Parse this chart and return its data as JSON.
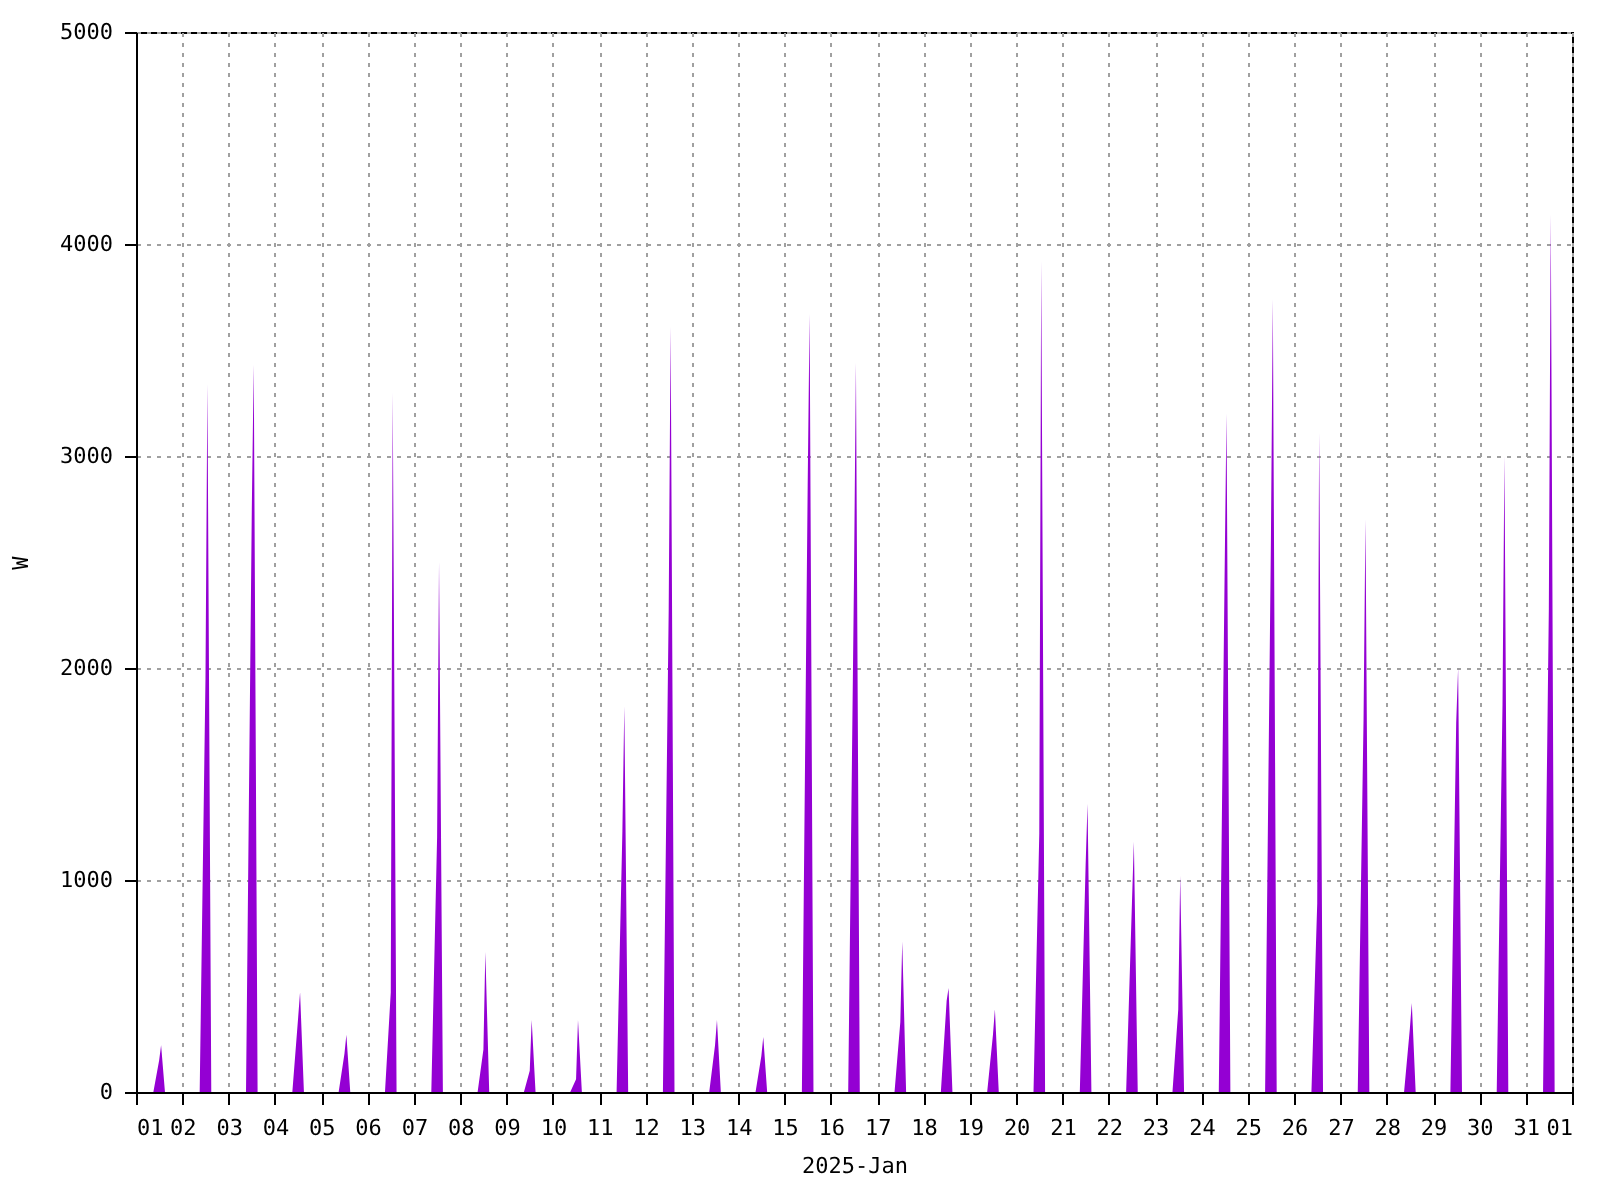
{
  "chart_data": {
    "type": "area",
    "xlabel": "2025-Jan",
    "ylabel": "W",
    "color": "#9400d3",
    "xlim": [
      "2025-01-01",
      "2025-02-01"
    ],
    "ylim": [
      0,
      5000
    ],
    "yticks": [
      0,
      1000,
      2000,
      3000,
      4000,
      5000
    ],
    "grid": true,
    "xticks": [
      {
        "value": "2025-01-01",
        "label": "01"
      },
      {
        "value": "2025-01-02",
        "label": "02"
      },
      {
        "value": "2025-01-03",
        "label": "03"
      },
      {
        "value": "2025-01-04",
        "label": "04"
      },
      {
        "value": "2025-01-05",
        "label": "05"
      },
      {
        "value": "2025-01-06",
        "label": "06"
      },
      {
        "value": "2025-01-07",
        "label": "07"
      },
      {
        "value": "2025-01-08",
        "label": "08"
      },
      {
        "value": "2025-01-09",
        "label": "09"
      },
      {
        "value": "2025-01-10",
        "label": "10"
      },
      {
        "value": "2025-01-11",
        "label": "11"
      },
      {
        "value": "2025-01-12",
        "label": "12"
      },
      {
        "value": "2025-01-13",
        "label": "13"
      },
      {
        "value": "2025-01-14",
        "label": "14"
      },
      {
        "value": "2025-01-15",
        "label": "15"
      },
      {
        "value": "2025-01-16",
        "label": "16"
      },
      {
        "value": "2025-01-17",
        "label": "17"
      },
      {
        "value": "2025-01-18",
        "label": "18"
      },
      {
        "value": "2025-01-19",
        "label": "19"
      },
      {
        "value": "2025-01-20",
        "label": "20"
      },
      {
        "value": "2025-01-21",
        "label": "21"
      },
      {
        "value": "2025-01-22",
        "label": "22"
      },
      {
        "value": "2025-01-23",
        "label": "23"
      },
      {
        "value": "2025-01-24",
        "label": "24"
      },
      {
        "value": "2025-01-25",
        "label": "25"
      },
      {
        "value": "2025-01-26",
        "label": "26"
      },
      {
        "value": "2025-01-27",
        "label": "27"
      },
      {
        "value": "2025-01-28",
        "label": "28"
      },
      {
        "value": "2025-01-29",
        "label": "29"
      },
      {
        "value": "2025-01-30",
        "label": "30"
      },
      {
        "value": "2025-01-31",
        "label": "31"
      },
      {
        "value": "2025-02-01",
        "label": "01"
      }
    ],
    "x": [
      "2025-01-01T09:00",
      "2025-01-01T12:00",
      "2025-01-01T13:00",
      "2025-01-01T15:00",
      "2025-01-02T09:00",
      "2025-01-02T12:00",
      "2025-01-02T13:00",
      "2025-01-02T15:00",
      "2025-01-03T09:00",
      "2025-01-03T12:00",
      "2025-01-03T13:00",
      "2025-01-03T15:00",
      "2025-01-04T09:00",
      "2025-01-04T12:00",
      "2025-01-04T13:00",
      "2025-01-04T15:00",
      "2025-01-05T09:00",
      "2025-01-05T12:00",
      "2025-01-05T13:00",
      "2025-01-05T15:00",
      "2025-01-06T09:00",
      "2025-01-06T12:00",
      "2025-01-06T13:00",
      "2025-01-06T15:00",
      "2025-01-07T09:00",
      "2025-01-07T12:00",
      "2025-01-07T13:00",
      "2025-01-07T15:00",
      "2025-01-08T09:00",
      "2025-01-08T12:00",
      "2025-01-08T13:00",
      "2025-01-08T15:00",
      "2025-01-09T09:00",
      "2025-01-09T12:00",
      "2025-01-09T13:00",
      "2025-01-09T15:00",
      "2025-01-10T09:00",
      "2025-01-10T12:00",
      "2025-01-10T13:00",
      "2025-01-10T15:00",
      "2025-01-11T09:00",
      "2025-01-11T12:00",
      "2025-01-11T13:00",
      "2025-01-11T15:00",
      "2025-01-12T09:00",
      "2025-01-12T12:00",
      "2025-01-12T13:00",
      "2025-01-12T15:00",
      "2025-01-13T09:00",
      "2025-01-13T12:00",
      "2025-01-13T13:00",
      "2025-01-13T15:00",
      "2025-01-14T09:00",
      "2025-01-14T12:00",
      "2025-01-14T13:00",
      "2025-01-14T15:00",
      "2025-01-15T09:00",
      "2025-01-15T12:00",
      "2025-01-15T13:00",
      "2025-01-15T15:00",
      "2025-01-16T09:00",
      "2025-01-16T12:00",
      "2025-01-16T13:00",
      "2025-01-16T15:00",
      "2025-01-17T09:00",
      "2025-01-17T12:00",
      "2025-01-17T13:00",
      "2025-01-17T15:00",
      "2025-01-18T09:00",
      "2025-01-18T12:00",
      "2025-01-18T13:00",
      "2025-01-18T15:00",
      "2025-01-19T09:00",
      "2025-01-19T12:00",
      "2025-01-19T13:00",
      "2025-01-19T15:00",
      "2025-01-20T09:00",
      "2025-01-20T12:00",
      "2025-01-20T13:00",
      "2025-01-20T15:00",
      "2025-01-21T09:00",
      "2025-01-21T12:00",
      "2025-01-21T13:00",
      "2025-01-21T15:00",
      "2025-01-22T09:00",
      "2025-01-22T12:00",
      "2025-01-22T13:00",
      "2025-01-22T15:00",
      "2025-01-23T09:00",
      "2025-01-23T12:00",
      "2025-01-23T13:00",
      "2025-01-23T15:00",
      "2025-01-24T09:00",
      "2025-01-24T12:00",
      "2025-01-24T13:00",
      "2025-01-24T15:00",
      "2025-01-25T09:00",
      "2025-01-25T12:00",
      "2025-01-25T13:00",
      "2025-01-25T15:00",
      "2025-01-26T09:00",
      "2025-01-26T12:00",
      "2025-01-26T13:00",
      "2025-01-26T15:00",
      "2025-01-27T09:00",
      "2025-01-27T12:00",
      "2025-01-27T13:00",
      "2025-01-27T15:00",
      "2025-01-28T09:00",
      "2025-01-28T12:00",
      "2025-01-28T13:00",
      "2025-01-28T15:00",
      "2025-01-29T09:00",
      "2025-01-29T12:00",
      "2025-01-29T13:00",
      "2025-01-29T15:00",
      "2025-01-30T09:00",
      "2025-01-30T12:00",
      "2025-01-30T13:00",
      "2025-01-30T15:00",
      "2025-01-31T09:00",
      "2025-01-31T12:00",
      "2025-01-31T13:00",
      "2025-01-31T15:00"
    ],
    "values": [
      0,
      150,
      220,
      0,
      0,
      1950,
      3340,
      0,
      0,
      2750,
      3430,
      0,
      0,
      350,
      470,
      0,
      0,
      180,
      270,
      0,
      0,
      470,
      3300,
      0,
      0,
      1200,
      2500,
      0,
      0,
      200,
      660,
      0,
      0,
      100,
      340,
      0,
      0,
      60,
      340,
      0,
      0,
      1230,
      1820,
      0,
      0,
      2280,
      3610,
      0,
      0,
      220,
      340,
      0,
      0,
      170,
      260,
      0,
      0,
      2860,
      3670,
      0,
      0,
      2430,
      3440,
      0,
      0,
      330,
      710,
      0,
      0,
      430,
      490,
      0,
      0,
      270,
      390,
      0,
      0,
      1220,
      3920,
      0,
      0,
      1070,
      1360,
      0,
      0,
      890,
      1180,
      0,
      0,
      390,
      1020,
      0,
      0,
      2430,
      3200,
      0,
      0,
      2600,
      3740,
      0,
      0,
      890,
      3110,
      0,
      0,
      1760,
      2700,
      0,
      0,
      300,
      420,
      0,
      0,
      1740,
      2000,
      0,
      0,
      1830,
      3000,
      0,
      0,
      2280,
      4140,
      0
    ]
  }
}
